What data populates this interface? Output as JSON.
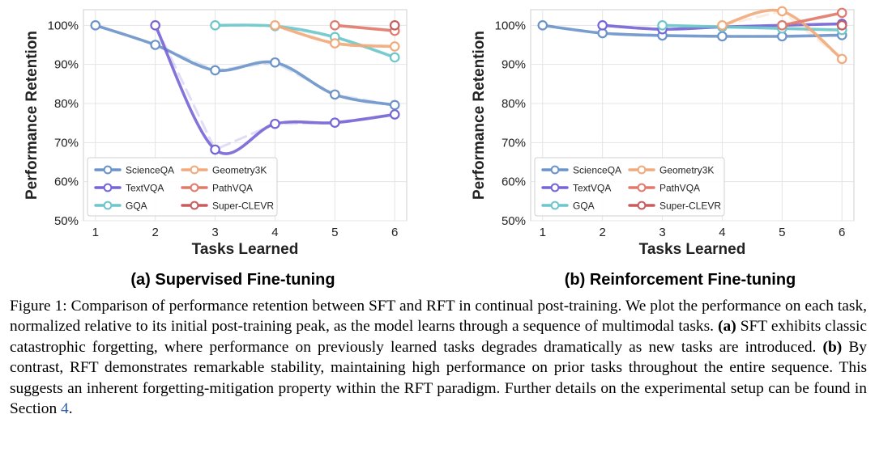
{
  "chart_data": [
    {
      "type": "line",
      "id": "sft",
      "subtitle": "(a) Supervised Fine-tuning",
      "xlabel": "Tasks Learned",
      "ylabel": "Performance Retention",
      "xlim": [
        0.8,
        6.2
      ],
      "ylim": [
        50,
        104
      ],
      "xticks": [
        1,
        2,
        3,
        4,
        5,
        6
      ],
      "yticks": [
        50,
        60,
        70,
        80,
        90,
        100
      ],
      "ytick_labels": [
        "50%",
        "60%",
        "70%",
        "80%",
        "90%",
        "100%"
      ],
      "grid": true,
      "legend_position": "lower-left",
      "series": [
        {
          "name": "ScienceQA",
          "color": "#6b93c9",
          "x": [
            1,
            2,
            3,
            4,
            5,
            6
          ],
          "y": [
            100,
            95,
            88.5,
            90.5,
            82.3,
            79.6
          ]
        },
        {
          "name": "TextVQA",
          "color": "#7565d6",
          "x": [
            2,
            3,
            4,
            5,
            6
          ],
          "y": [
            100,
            68.2,
            74.8,
            75.1,
            77.2
          ]
        },
        {
          "name": "GQA",
          "color": "#6cc6cb",
          "x": [
            3,
            4,
            5,
            6
          ],
          "y": [
            100,
            99.8,
            97,
            91.8
          ]
        },
        {
          "name": "Geometry3K",
          "color": "#f1aa7b",
          "x": [
            4,
            5,
            6
          ],
          "y": [
            100,
            95.4,
            94.6
          ]
        },
        {
          "name": "PathVQA",
          "color": "#e07a6c",
          "x": [
            5,
            6
          ],
          "y": [
            100,
            98.6
          ]
        },
        {
          "name": "Super-CLEVR",
          "color": "#c85c5e",
          "x": [
            6
          ],
          "y": [
            100
          ]
        }
      ]
    },
    {
      "type": "line",
      "id": "rft",
      "subtitle": "(b) Reinforcement Fine-tuning",
      "xlabel": "Tasks Learned",
      "ylabel": "Performance Retention",
      "xlim": [
        0.8,
        6.2
      ],
      "ylim": [
        50,
        104
      ],
      "xticks": [
        1,
        2,
        3,
        4,
        5,
        6
      ],
      "yticks": [
        50,
        60,
        70,
        80,
        90,
        100
      ],
      "ytick_labels": [
        "50%",
        "60%",
        "70%",
        "80%",
        "90%",
        "100%"
      ],
      "grid": true,
      "legend_position": "lower-left",
      "series": [
        {
          "name": "ScienceQA",
          "color": "#6b93c9",
          "x": [
            1,
            2,
            3,
            4,
            5,
            6
          ],
          "y": [
            100,
            98,
            97.4,
            97.2,
            97.2,
            97.5
          ]
        },
        {
          "name": "TextVQA",
          "color": "#7565d6",
          "x": [
            2,
            3,
            4,
            5,
            6
          ],
          "y": [
            100,
            99,
            99.6,
            100,
            100.4
          ]
        },
        {
          "name": "GQA",
          "color": "#6cc6cb",
          "x": [
            3,
            4,
            5,
            6
          ],
          "y": [
            100,
            99.6,
            99.2,
            98.8
          ]
        },
        {
          "name": "Geometry3K",
          "color": "#f1aa7b",
          "x": [
            4,
            5,
            6
          ],
          "y": [
            100,
            103.6,
            91.4
          ]
        },
        {
          "name": "PathVQA",
          "color": "#e07a6c",
          "x": [
            5,
            6
          ],
          "y": [
            100,
            103.2
          ]
        },
        {
          "name": "Super-CLEVR",
          "color": "#c85c5e",
          "x": [
            6
          ],
          "y": [
            100
          ]
        }
      ]
    }
  ],
  "caption": {
    "figure_label": "Figure 1:",
    "intro": "Comparison of performance retention between SFT and RFT in continual post-training. We plot the performance on each task, normalized relative to its initial post-training peak, as the model learns through a sequence of multimodal tasks.",
    "label_a": "(a)",
    "text_a": "SFT exhibits classic catastrophic forgetting, where performance on previously learned tasks degrades dramatically as new tasks are introduced.",
    "label_b": "(b)",
    "text_b": "By contrast, RFT demonstrates remarkable stability, maintaining high performance on prior tasks throughout the entire sequence. This suggests an inherent forgetting-mitigation property within the RFT paradigm. Further details on the experimental setup can be found in Section",
    "section_ref": "4",
    "end": "."
  }
}
